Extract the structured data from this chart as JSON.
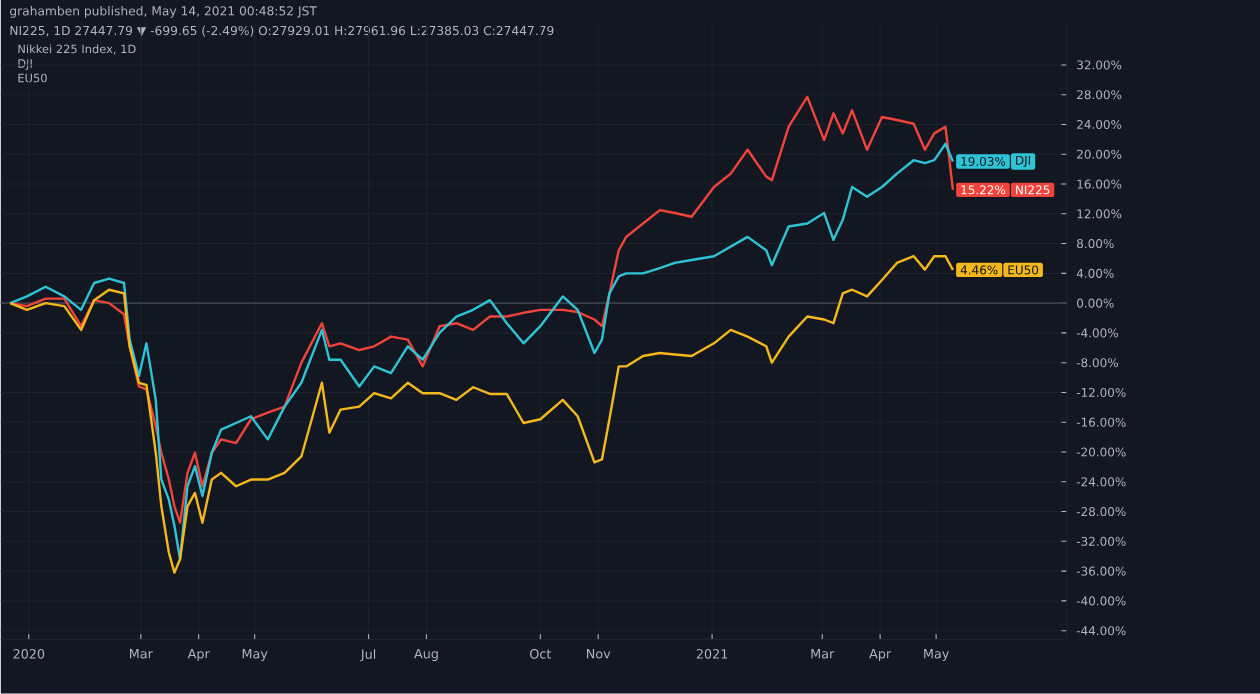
{
  "chart_data": {
    "type": "line",
    "annotations": [
      "grahamben published, May 14, 2021 00:48:52 JST",
      "NI225, 1D 27447.79 ▼ -699.65 (-2.49%) O:27929.01 H:27961.96 L:27385.03 C:27447.79",
      "Nikkei 225 Index, 1D",
      "DJI",
      "EU50"
    ],
    "x": [
      "2019-12-22",
      "2019-12-31",
      "2020-01-10",
      "2020-01-20",
      "2020-01-29",
      "2020-02-05",
      "2020-02-13",
      "2020-02-21",
      "2020-02-24",
      "2020-02-29",
      "2020-03-04",
      "2020-03-09",
      "2020-03-12",
      "2020-03-16",
      "2020-03-19",
      "2020-03-22",
      "2020-03-26",
      "2020-03-30",
      "2020-04-03",
      "2020-04-08",
      "2020-04-13",
      "2020-04-21",
      "2020-04-29",
      "2020-05-08",
      "2020-05-17",
      "2020-05-26",
      "2020-06-06",
      "2020-06-10",
      "2020-06-16",
      "2020-06-26",
      "2020-07-04",
      "2020-07-13",
      "2020-07-22",
      "2020-07-30",
      "2020-08-08",
      "2020-08-17",
      "2020-08-26",
      "2020-09-04",
      "2020-09-13",
      "2020-09-22",
      "2020-10-01",
      "2020-10-13",
      "2020-10-21",
      "2020-10-30",
      "2020-11-03",
      "2020-11-07",
      "2020-11-12",
      "2020-11-16",
      "2020-11-25",
      "2020-12-04",
      "2020-12-12",
      "2020-12-21",
      "2021-01-02",
      "2021-01-11",
      "2021-01-20",
      "2021-01-30",
      "2021-02-02",
      "2021-02-11",
      "2021-02-21",
      "2021-03-02",
      "2021-03-07",
      "2021-03-12",
      "2021-03-17",
      "2021-03-25",
      "2021-04-02",
      "2021-04-10",
      "2021-04-19",
      "2021-04-25",
      "2021-04-30",
      "2021-05-06",
      "2021-05-10"
    ],
    "series": [
      {
        "name": "NI225",
        "color": "#f0443a",
        "values": [
          0.0,
          -0.4,
          0.6,
          0.6,
          -3.1,
          0.4,
          0.0,
          -1.5,
          -5.8,
          -11.2,
          -11.6,
          -16.5,
          -20.1,
          -23.7,
          -27.3,
          -29.5,
          -22.8,
          -20.1,
          -24.6,
          -20.1,
          -18.3,
          -18.8,
          -15.6,
          -14.7,
          -13.9,
          -8.0,
          -2.7,
          -5.8,
          -5.4,
          -6.3,
          -5.8,
          -4.5,
          -4.9,
          -8.5,
          -3.1,
          -2.7,
          -3.6,
          -1.8,
          -1.8,
          -1.3,
          -0.9,
          -0.9,
          -1.2,
          -2.2,
          -3.1,
          1.3,
          7.1,
          8.9,
          10.7,
          12.5,
          12.1,
          11.6,
          15.6,
          17.4,
          20.6,
          17.0,
          16.5,
          23.7,
          27.7,
          21.9,
          25.5,
          22.8,
          25.9,
          20.6,
          25.0,
          24.6,
          24.1,
          20.6,
          22.8,
          23.7,
          15.22
        ],
        "value_labels": [
          null,
          null,
          null,
          null,
          null,
          null,
          null,
          null,
          null,
          null,
          null,
          null,
          null,
          null,
          null,
          null,
          null,
          null,
          null,
          null,
          null,
          null,
          null,
          null,
          null,
          null,
          null,
          null,
          null,
          null,
          null,
          null,
          null,
          null,
          null,
          null,
          null,
          null,
          null,
          null,
          null,
          null,
          null,
          null,
          null,
          null,
          null,
          null,
          null,
          null,
          null,
          null,
          null,
          null,
          null,
          null,
          null,
          null,
          null,
          null,
          null,
          null,
          null,
          null,
          null,
          null,
          null,
          null,
          null,
          null,
          "15.22%"
        ]
      },
      {
        "name": "DJI",
        "color": "#2ec4d6",
        "values": [
          0.0,
          0.9,
          2.2,
          0.9,
          -0.9,
          2.7,
          3.3,
          2.7,
          -4.9,
          -9.8,
          -5.4,
          -13.0,
          -23.7,
          -26.4,
          -29.9,
          -34.4,
          -24.6,
          -21.9,
          -25.9,
          -20.1,
          -17.0,
          -16.1,
          -15.2,
          -18.3,
          -13.9,
          -10.7,
          -3.6,
          -7.6,
          -7.6,
          -11.2,
          -8.5,
          -9.4,
          -5.8,
          -7.6,
          -4.0,
          -1.8,
          -0.9,
          0.4,
          -2.7,
          -5.4,
          -3.1,
          0.9,
          -0.9,
          -6.7,
          -4.9,
          1.3,
          3.6,
          4.0,
          4.0,
          4.7,
          5.4,
          5.8,
          6.3,
          7.6,
          8.9,
          7.1,
          5.1,
          10.3,
          10.7,
          12.1,
          8.5,
          11.2,
          15.6,
          14.3,
          15.6,
          17.4,
          19.2,
          18.8,
          19.2,
          21.4,
          19.03
        ],
        "value_labels": [
          null,
          null,
          null,
          null,
          null,
          null,
          null,
          null,
          null,
          null,
          null,
          null,
          null,
          null,
          null,
          null,
          null,
          null,
          null,
          null,
          null,
          null,
          null,
          null,
          null,
          null,
          null,
          null,
          null,
          null,
          null,
          null,
          null,
          null,
          null,
          null,
          null,
          null,
          null,
          null,
          null,
          null,
          null,
          null,
          null,
          null,
          null,
          null,
          null,
          null,
          null,
          null,
          null,
          null,
          null,
          null,
          null,
          null,
          null,
          null,
          null,
          null,
          null,
          null,
          null,
          null,
          null,
          null,
          null,
          null,
          "19.03%"
        ]
      },
      {
        "name": "EU50",
        "color": "#f5b81c",
        "values": [
          0.0,
          -0.9,
          0.0,
          -0.4,
          -3.6,
          0.4,
          1.8,
          1.3,
          -5.8,
          -10.7,
          -11.0,
          -20.1,
          -27.3,
          -33.5,
          -36.2,
          -34.4,
          -27.3,
          -25.5,
          -29.5,
          -23.7,
          -22.8,
          -24.6,
          -23.7,
          -23.7,
          -22.8,
          -20.6,
          -10.7,
          -17.4,
          -14.3,
          -13.9,
          -12.1,
          -12.8,
          -10.7,
          -12.1,
          -12.1,
          -13.0,
          -11.3,
          -12.2,
          -12.2,
          -16.1,
          -15.6,
          -13.0,
          -15.2,
          -21.4,
          -21.0,
          -15.6,
          -8.5,
          -8.5,
          -7.1,
          -6.7,
          -6.9,
          -7.1,
          -5.4,
          -3.6,
          -4.5,
          -5.8,
          -8.0,
          -4.5,
          -1.8,
          -2.2,
          -2.7,
          1.3,
          1.8,
          0.9,
          3.1,
          5.4,
          6.3,
          4.5,
          6.3,
          6.3,
          4.46
        ],
        "value_labels": [
          null,
          null,
          null,
          null,
          null,
          null,
          null,
          null,
          null,
          null,
          null,
          null,
          null,
          null,
          null,
          null,
          null,
          null,
          null,
          null,
          null,
          null,
          null,
          null,
          null,
          null,
          null,
          null,
          null,
          null,
          null,
          null,
          null,
          null,
          null,
          null,
          null,
          null,
          null,
          null,
          null,
          null,
          null,
          null,
          null,
          null,
          null,
          null,
          null,
          null,
          null,
          null,
          null,
          null,
          null,
          null,
          null,
          null,
          null,
          null,
          null,
          null,
          null,
          null,
          null,
          null,
          null,
          null,
          null,
          null,
          "4.46%"
        ]
      }
    ],
    "xlim": [
      "2019-12-17",
      "2021-07-10"
    ],
    "xticks": [
      {
        "value": "2020-01-01",
        "label": "2020"
      },
      {
        "value": "2020-03-01",
        "label": "Mar"
      },
      {
        "value": "2020-04-01",
        "label": "Apr"
      },
      {
        "value": "2020-05-01",
        "label": "May"
      },
      {
        "value": "2020-07-01",
        "label": "Jul"
      },
      {
        "value": "2020-08-01",
        "label": "Aug"
      },
      {
        "value": "2020-10-01",
        "label": "Oct"
      },
      {
        "value": "2020-11-01",
        "label": "Nov"
      },
      {
        "value": "2021-01-01",
        "label": "2021"
      },
      {
        "value": "2021-03-01",
        "label": "Mar"
      },
      {
        "value": "2021-04-01",
        "label": "Apr"
      },
      {
        "value": "2021-05-01",
        "label": "May"
      }
    ],
    "ylim": [
      -45.2,
      37.5
    ],
    "yticks": [
      {
        "value": 32,
        "label": "32.00%"
      },
      {
        "value": 28,
        "label": "28.00%"
      },
      {
        "value": 24,
        "label": "24.00%"
      },
      {
        "value": 20,
        "label": "20.00%"
      },
      {
        "value": 16,
        "label": "16.00%"
      },
      {
        "value": 12,
        "label": "12.00%"
      },
      {
        "value": 8,
        "label": "8.00%"
      },
      {
        "value": 4,
        "label": "4.00%"
      },
      {
        "value": 0,
        "label": "0.00%"
      },
      {
        "value": -4,
        "label": "-4.00%"
      },
      {
        "value": -8,
        "label": "-8.00%"
      },
      {
        "value": -12,
        "label": "-12.00%"
      },
      {
        "value": -16,
        "label": "-16.00%"
      },
      {
        "value": -20,
        "label": "-20.00%"
      },
      {
        "value": -24,
        "label": "-24.00%"
      },
      {
        "value": -28,
        "label": "-28.00%"
      },
      {
        "value": -32,
        "label": "-32.00%"
      },
      {
        "value": -36,
        "label": "-36.00%"
      },
      {
        "value": -40,
        "label": "-40.00%"
      },
      {
        "value": -44,
        "label": "-44.00%"
      }
    ],
    "grid": true,
    "legend": "right",
    "ref_lines": [
      {
        "axis": "y",
        "value": 0,
        "color": "#3a3e4a"
      }
    ]
  }
}
